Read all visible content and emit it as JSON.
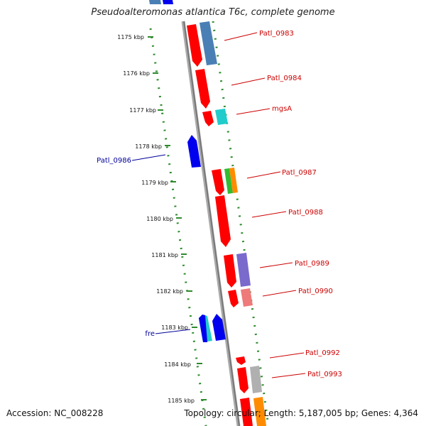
{
  "title": "Pseudoalteromonas atlantica T6c, complete genome",
  "accession": "Accession: NC_008228",
  "topology": "Topology: circular; Length: 5,187,005 bp; Genes: 4,364",
  "ruler_ticks": [
    "1175 kbp",
    "1176 kbp",
    "1177 kbp",
    "1178 kbp",
    "1179 kbp",
    "1180 kbp",
    "1181 kbp",
    "1182 kbp",
    "1183 kbp",
    "1184 kbp",
    "1185 kbp"
  ],
  "forward_labels": [
    "Patl_0983",
    "Patl_0984",
    "mgsA",
    "Patl_0987",
    "Patl_0988",
    "Patl_0989",
    "Patl_0990",
    "Patl_0992",
    "Patl_0993"
  ],
  "reverse_labels": [
    "Patl_0986",
    "fre"
  ],
  "colors": {
    "forward_label": "#cc0000",
    "reverse_label": "#000099",
    "dots": "#2e8b2e",
    "backbone": "#888888",
    "red": "#ff0000",
    "blue": "#0000ee",
    "steelblue": "#4a7fb5",
    "cyan": "#22cccc",
    "violet": "#7a6acc",
    "salmon": "#ee7a7a",
    "gray": "#b0b0b0",
    "green": "#33bb33",
    "orange": "#ff8c00"
  }
}
